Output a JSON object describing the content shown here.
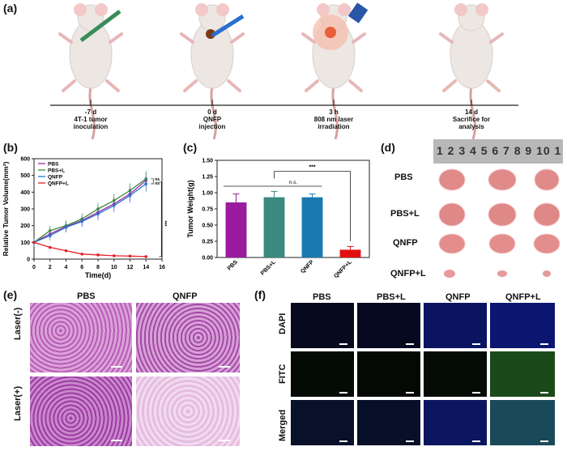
{
  "panels": {
    "a": "(a)",
    "b": "(b)",
    "c": "(c)",
    "d": "(d)",
    "e": "(e)",
    "f": "(f)"
  },
  "timeline": [
    {
      "time": "-7 d",
      "text": "4T-1 tumor inoculation",
      "line2": "inoculation",
      "line1": "4T-1 tumor"
    },
    {
      "time": "0 d",
      "line1": "QNFP",
      "line2": "injection"
    },
    {
      "time": "3 h",
      "line1": "808 nm laser",
      "line2": "irradiation"
    },
    {
      "time": "14 d",
      "line1": "Sacrifice for",
      "line2": "analysis"
    }
  ],
  "chart_data": [
    {
      "type": "line",
      "xlabel": "Time(d)",
      "ylabel": "Relative Tumor Volume(mm³)",
      "xlim": [
        0,
        16
      ],
      "ylim": [
        0,
        600
      ],
      "xticks": [
        0,
        2,
        4,
        6,
        8,
        10,
        12,
        14,
        16
      ],
      "yticks": [
        0,
        100,
        200,
        300,
        400,
        500,
        600
      ],
      "legend": "top-left",
      "annotations": [
        "ns",
        "ns",
        "***"
      ],
      "series": [
        {
          "name": "PBS",
          "color": "#9b2ca6",
          "x": [
            0,
            2,
            4,
            6,
            8,
            10,
            12,
            14
          ],
          "y": [
            100,
            150,
            195,
            230,
            280,
            330,
            390,
            470
          ]
        },
        {
          "name": "PBS+L",
          "color": "#3a8a3a",
          "x": [
            0,
            2,
            4,
            6,
            8,
            10,
            12,
            14
          ],
          "y": [
            100,
            170,
            200,
            240,
            300,
            350,
            410,
            480
          ]
        },
        {
          "name": "QNFP",
          "color": "#2a6fd0",
          "x": [
            0,
            2,
            4,
            6,
            8,
            10,
            12,
            14
          ],
          "y": [
            100,
            140,
            190,
            225,
            270,
            320,
            380,
            450
          ]
        },
        {
          "name": "QNFP+L",
          "color": "#e0202a",
          "x": [
            0,
            2,
            4,
            6,
            8,
            10,
            12,
            14
          ],
          "y": [
            100,
            70,
            50,
            30,
            25,
            20,
            18,
            15
          ]
        }
      ]
    },
    {
      "type": "bar",
      "ylabel": "Tumor Weight(g)",
      "ylim": [
        0,
        1.5
      ],
      "yticks": [
        "0.00",
        "0.25",
        "0.50",
        "0.75",
        "1.00",
        "1.25",
        "1.50"
      ],
      "categories": [
        "PBS",
        "PBS+L",
        "QNFP",
        "QNFP+L"
      ],
      "values": [
        0.85,
        0.93,
        0.93,
        0.12
      ],
      "errors": [
        0.13,
        0.09,
        0.05,
        0.05
      ],
      "colors": [
        "#9a1aa0",
        "#3a8a80",
        "#1a7ab0",
        "#e01010"
      ],
      "annotations": [
        "n.s.",
        "***"
      ]
    }
  ],
  "photo": {
    "ruler": "1 2 3 4 5 6 7 8 9 10 1",
    "rows": [
      "PBS",
      "PBS+L",
      "QNFP",
      "QNFP+L"
    ]
  },
  "histology": {
    "cols": [
      "PBS",
      "QNFP"
    ],
    "rows": [
      "Laser(-)",
      "Laser(+)"
    ]
  },
  "fluorescence": {
    "cols": [
      "PBS",
      "PBS+L",
      "QNFP",
      "QNFP+L"
    ],
    "rows": [
      "DAPI",
      "FITC",
      "Merged"
    ]
  }
}
